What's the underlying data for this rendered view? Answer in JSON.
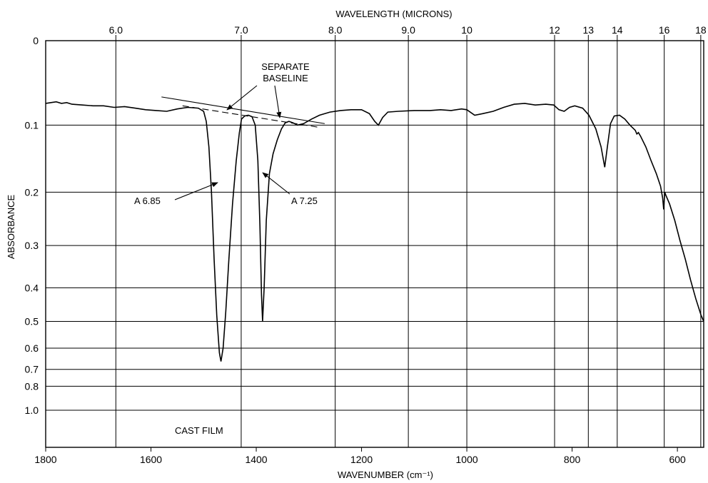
{
  "chart_data": {
    "type": "line",
    "title": "",
    "top_axis_label": "WAVELENGTH (MICRONS)",
    "xlabel": "WAVENUMBER (cm⁻¹)",
    "ylabel": "ABSORBANCE",
    "x_range": [
      1800,
      550
    ],
    "x_ticks": [
      {
        "value": 1800,
        "label": "1800"
      },
      {
        "value": 1600,
        "label": "1600"
      },
      {
        "value": 1400,
        "label": "1400"
      },
      {
        "value": 1200,
        "label": "1200"
      },
      {
        "value": 1000,
        "label": "1000"
      },
      {
        "value": 800,
        "label": "800"
      },
      {
        "value": 600,
        "label": "600"
      }
    ],
    "top_ticks": [
      {
        "wavenumber": 1666.7,
        "label": "6.0"
      },
      {
        "wavenumber": 1428.6,
        "label": "7.0"
      },
      {
        "wavenumber": 1250.0,
        "label": "8.0"
      },
      {
        "wavenumber": 1111.1,
        "label": "9.0"
      },
      {
        "wavenumber": 1000.0,
        "label": "10"
      },
      {
        "wavenumber": 833.3,
        "label": "12"
      },
      {
        "wavenumber": 769.2,
        "label": "13"
      },
      {
        "wavenumber": 714.3,
        "label": "14"
      },
      {
        "wavenumber": 625.0,
        "label": "16"
      },
      {
        "wavenumber": 555.6,
        "label": "18"
      }
    ],
    "y_scale": "log-absorbance",
    "y_ticks": [
      {
        "value": 0,
        "label": "0"
      },
      {
        "value": 0.1,
        "label": "0.1"
      },
      {
        "value": 0.2,
        "label": "0.2"
      },
      {
        "value": 0.3,
        "label": "0.3"
      },
      {
        "value": 0.4,
        "label": "0.4"
      },
      {
        "value": 0.5,
        "label": "0.5"
      },
      {
        "value": 0.6,
        "label": "0.6"
      },
      {
        "value": 0.7,
        "label": "0.7"
      },
      {
        "value": 0.8,
        "label": "0.8"
      },
      {
        "value": 1.0,
        "label": "1.0"
      }
    ],
    "grid": true,
    "series": [
      {
        "points": [
          [
            1800,
            0.072
          ],
          [
            1790,
            0.071
          ],
          [
            1780,
            0.07
          ],
          [
            1770,
            0.072
          ],
          [
            1760,
            0.071
          ],
          [
            1750,
            0.073
          ],
          [
            1730,
            0.074
          ],
          [
            1710,
            0.075
          ],
          [
            1690,
            0.075
          ],
          [
            1670,
            0.077
          ],
          [
            1650,
            0.076
          ],
          [
            1630,
            0.078
          ],
          [
            1610,
            0.08
          ],
          [
            1590,
            0.081
          ],
          [
            1570,
            0.082
          ],
          [
            1550,
            0.079
          ],
          [
            1530,
            0.077
          ],
          [
            1510,
            0.078
          ],
          [
            1500,
            0.082
          ],
          [
            1495,
            0.095
          ],
          [
            1490,
            0.13
          ],
          [
            1485,
            0.2
          ],
          [
            1480,
            0.33
          ],
          [
            1475,
            0.48
          ],
          [
            1470,
            0.62
          ],
          [
            1467,
            0.66
          ],
          [
            1463,
            0.6
          ],
          [
            1458,
            0.47
          ],
          [
            1452,
            0.33
          ],
          [
            1445,
            0.22
          ],
          [
            1438,
            0.15
          ],
          [
            1432,
            0.11
          ],
          [
            1428,
            0.092
          ],
          [
            1422,
            0.088
          ],
          [
            1415,
            0.087
          ],
          [
            1408,
            0.089
          ],
          [
            1402,
            0.1
          ],
          [
            1397,
            0.15
          ],
          [
            1393,
            0.26
          ],
          [
            1390,
            0.42
          ],
          [
            1388,
            0.5
          ],
          [
            1385,
            0.4
          ],
          [
            1381,
            0.25
          ],
          [
            1375,
            0.17
          ],
          [
            1368,
            0.14
          ],
          [
            1360,
            0.12
          ],
          [
            1352,
            0.105
          ],
          [
            1345,
            0.097
          ],
          [
            1338,
            0.095
          ],
          [
            1330,
            0.097
          ],
          [
            1322,
            0.1
          ],
          [
            1310,
            0.098
          ],
          [
            1295,
            0.092
          ],
          [
            1280,
            0.087
          ],
          [
            1260,
            0.083
          ],
          [
            1240,
            0.081
          ],
          [
            1220,
            0.08
          ],
          [
            1200,
            0.08
          ],
          [
            1185,
            0.085
          ],
          [
            1175,
            0.095
          ],
          [
            1168,
            0.1
          ],
          [
            1160,
            0.09
          ],
          [
            1150,
            0.083
          ],
          [
            1130,
            0.082
          ],
          [
            1100,
            0.081
          ],
          [
            1070,
            0.081
          ],
          [
            1050,
            0.08
          ],
          [
            1030,
            0.081
          ],
          [
            1010,
            0.079
          ],
          [
            1000,
            0.08
          ],
          [
            985,
            0.087
          ],
          [
            970,
            0.085
          ],
          [
            950,
            0.082
          ],
          [
            930,
            0.077
          ],
          [
            910,
            0.073
          ],
          [
            890,
            0.072
          ],
          [
            870,
            0.074
          ],
          [
            850,
            0.073
          ],
          [
            835,
            0.074
          ],
          [
            825,
            0.08
          ],
          [
            815,
            0.082
          ],
          [
            805,
            0.077
          ],
          [
            795,
            0.075
          ],
          [
            780,
            0.078
          ],
          [
            768,
            0.087
          ],
          [
            755,
            0.105
          ],
          [
            745,
            0.13
          ],
          [
            738,
            0.16
          ],
          [
            733,
            0.13
          ],
          [
            727,
            0.098
          ],
          [
            720,
            0.088
          ],
          [
            710,
            0.087
          ],
          [
            700,
            0.092
          ],
          [
            690,
            0.1
          ],
          [
            680,
            0.107
          ],
          [
            677,
            0.112
          ],
          [
            674,
            0.11
          ],
          [
            670,
            0.115
          ],
          [
            660,
            0.13
          ],
          [
            650,
            0.15
          ],
          [
            640,
            0.17
          ],
          [
            632,
            0.19
          ],
          [
            628,
            0.21
          ],
          [
            626,
            0.23
          ],
          [
            624,
            0.2
          ],
          [
            622,
            0.205
          ],
          [
            615,
            0.22
          ],
          [
            605,
            0.25
          ],
          [
            595,
            0.29
          ],
          [
            585,
            0.33
          ],
          [
            575,
            0.38
          ],
          [
            565,
            0.43
          ],
          [
            555,
            0.48
          ],
          [
            550,
            0.5
          ]
        ]
      }
    ],
    "baselines": [
      {
        "style": "solid",
        "points": [
          [
            1580,
            0.064
          ],
          [
            1270,
            0.098
          ]
        ]
      },
      {
        "style": "dashed",
        "points": [
          [
            1540,
            0.075
          ],
          [
            1280,
            0.103
          ]
        ]
      }
    ],
    "annotations": [
      {
        "text": "SEPARATE",
        "role": "baseline-label-1"
      },
      {
        "text": "BASELINE",
        "role": "baseline-label-2"
      },
      {
        "text": "A 6.85",
        "role": "peak-label-1"
      },
      {
        "text": "A 7.25",
        "role": "peak-label-2"
      },
      {
        "text": "CAST FILM",
        "role": "sample-label"
      }
    ]
  }
}
